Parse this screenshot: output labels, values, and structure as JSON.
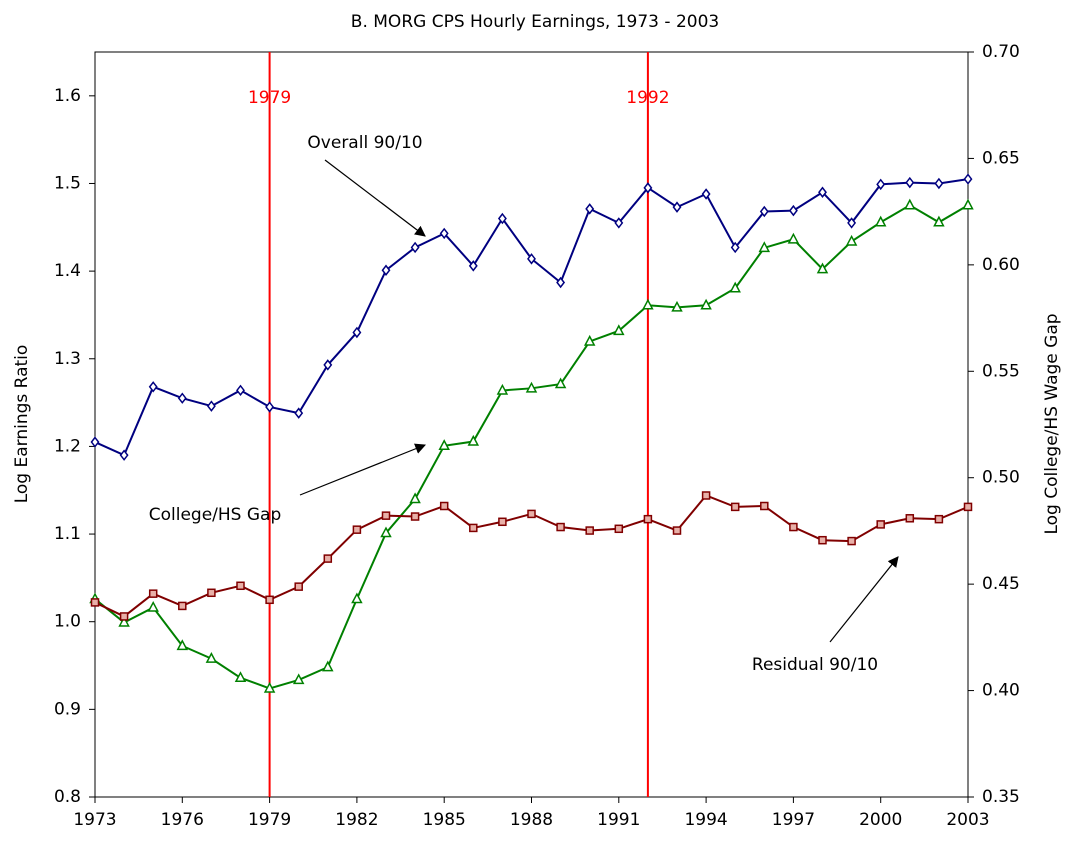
{
  "chart_data": {
    "type": "line",
    "title": "B. MORG CPS Hourly Earnings, 1973 - 2003",
    "y_label": "Log Earnings Ratio",
    "y2_label": "Log College/HS Wage Gap",
    "x": [
      1973,
      1974,
      1975,
      1976,
      1977,
      1978,
      1979,
      1980,
      1981,
      1982,
      1983,
      1984,
      1985,
      1986,
      1987,
      1988,
      1989,
      1990,
      1991,
      1992,
      1993,
      1994,
      1995,
      1996,
      1997,
      1998,
      1999,
      2000,
      2001,
      2002,
      2003
    ],
    "xlim": [
      1973,
      2003
    ],
    "xticks": [
      1973,
      1976,
      1979,
      1982,
      1985,
      1988,
      1991,
      1994,
      1997,
      2000,
      2003
    ],
    "ylim": [
      0.8,
      1.65
    ],
    "yticks": [
      0.8,
      0.9,
      {
        "value": 1,
        "label": "1.0"
      },
      1.1,
      1.2,
      1.3,
      1.4,
      1.5,
      1.6
    ],
    "y2lim": [
      0.35,
      0.7
    ],
    "y2ticks": [
      0.35,
      {
        "value": 0.4,
        "label": "0.40"
      },
      0.45,
      {
        "value": 0.5,
        "label": "0.50"
      },
      0.55,
      {
        "value": 0.6,
        "label": "0.60"
      },
      0.65,
      {
        "value": 0.7,
        "label": "0.70"
      }
    ],
    "vlines": [
      1979,
      1992
    ],
    "vline_color": "#ff0000",
    "series": [
      {
        "name": "Overall 90/10",
        "color": "#000080",
        "marker": "diamond",
        "values": [
          1.205,
          1.19,
          1.268,
          1.255,
          1.246,
          1.264,
          1.245,
          1.238,
          1.293,
          1.33,
          1.401,
          1.427,
          1.443,
          1.406,
          1.46,
          1.414,
          1.387,
          1.471,
          1.455,
          1.495,
          1.473,
          1.488,
          1.427,
          1.468,
          1.469,
          1.49,
          1.455,
          1.499,
          1.501,
          1.5,
          1.505
        ]
      },
      {
        "name": "College/HS Gap",
        "color": "#008000",
        "marker": "triangle",
        "axis": "y2",
        "values": [
          0.443,
          0.432,
          0.439,
          0.421,
          0.415,
          0.406,
          0.401,
          0.405,
          0.411,
          0.443,
          0.474,
          0.49,
          0.515,
          0.517,
          0.541,
          0.542,
          0.544,
          0.564,
          0.569,
          0.581,
          0.58,
          0.581,
          0.589,
          0.608,
          0.612,
          0.598,
          0.611,
          0.62,
          0.628,
          0.62,
          0.628
        ]
      },
      {
        "name": "Residual 90/10",
        "color": "#800000",
        "marker": "square",
        "values": [
          1.022,
          1.006,
          1.032,
          1.018,
          1.033,
          1.041,
          1.025,
          1.04,
          1.072,
          1.105,
          1.121,
          1.12,
          1.132,
          1.107,
          1.114,
          1.123,
          1.108,
          1.104,
          1.106,
          1.117,
          1.104,
          1.144,
          1.131,
          1.132,
          1.108,
          1.093,
          1.092,
          1.111,
          1.118,
          1.117,
          1.131
        ]
      }
    ]
  }
}
